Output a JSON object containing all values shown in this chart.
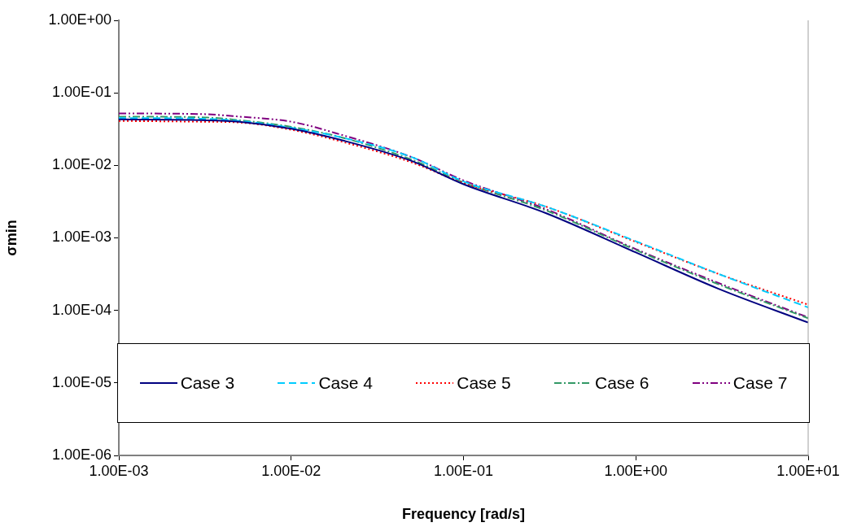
{
  "chart_data": {
    "type": "line",
    "xlabel": "Frequency [rad/s]",
    "ylabel": "σmin",
    "log": "xy",
    "grid": false,
    "legend": "bottom",
    "marker": "none",
    "x": [
      0.001,
      0.003,
      0.005,
      0.01,
      0.02,
      0.05,
      0.1,
      0.3,
      1,
      3,
      10
    ],
    "xlim": [
      0.001,
      10
    ],
    "ylim": [
      1e-06,
      1
    ],
    "xticks": [
      {
        "value": 0.001,
        "label": "1.00E-03"
      },
      {
        "value": 0.01,
        "label": "1.00E-02"
      },
      {
        "value": 0.1,
        "label": "1.00E-01"
      },
      {
        "value": 1,
        "label": "1.00E+00"
      },
      {
        "value": 10,
        "label": "1.00E+01"
      }
    ],
    "yticks": [
      {
        "value": 1e-06,
        "label": "1.00E-06"
      },
      {
        "value": 1e-05,
        "label": "1.00E-05"
      },
      {
        "value": 0.0001,
        "label": "1.00E-04"
      },
      {
        "value": 0.001,
        "label": "1.00E-03"
      },
      {
        "value": 0.01,
        "label": "1.00E-02"
      },
      {
        "value": 0.1,
        "label": "1.00E-01"
      },
      {
        "value": 1,
        "label": "1.00E+00"
      }
    ],
    "series": [
      {
        "name": "Case 3",
        "color": "#000080",
        "line_style": "solid",
        "values": [
          0.043,
          0.042,
          0.04,
          0.032,
          0.022,
          0.0115,
          0.0055,
          0.0022,
          0.00063,
          0.0002,
          6.8e-05
        ]
      },
      {
        "name": "Case 4",
        "color": "#00ccff",
        "line_style": "dashed",
        "values": [
          0.045,
          0.044,
          0.041,
          0.033,
          0.024,
          0.013,
          0.006,
          0.0027,
          0.0009,
          0.00032,
          0.00011
        ]
      },
      {
        "name": "Case 5",
        "color": "#ff0000",
        "line_style": "dotted",
        "values": [
          0.041,
          0.04,
          0.039,
          0.031,
          0.021,
          0.011,
          0.0057,
          0.0027,
          0.00088,
          0.00032,
          0.00012
        ]
      },
      {
        "name": "Case 6",
        "color": "#339966",
        "line_style": "dashdot",
        "values": [
          0.047,
          0.046,
          0.042,
          0.034,
          0.024,
          0.012,
          0.0058,
          0.0024,
          0.00068,
          0.00023,
          7.8e-05
        ]
      },
      {
        "name": "Case 7",
        "color": "#800080",
        "line_style": "dashdotdot",
        "values": [
          0.052,
          0.051,
          0.047,
          0.04,
          0.026,
          0.013,
          0.0062,
          0.0025,
          0.0007,
          0.00024,
          8e-05
        ]
      }
    ]
  }
}
